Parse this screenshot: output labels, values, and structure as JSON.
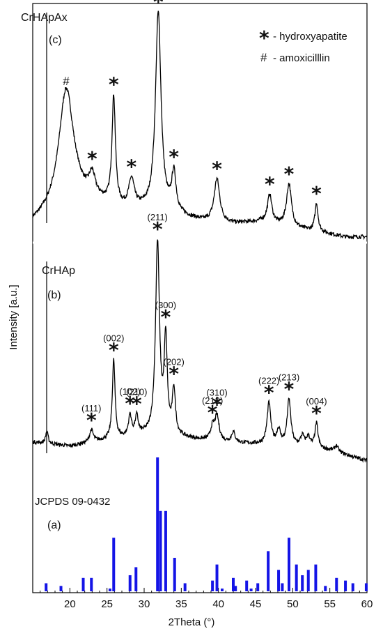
{
  "chart_data": {
    "type": "xrd-pattern",
    "xlabel": "2Theta (°)",
    "ylabel": "Intensity [a.u.]",
    "xlim": [
      15,
      60
    ],
    "x_ticks": [
      "20",
      "25",
      "30",
      "35",
      "40",
      "45",
      "50",
      "55",
      "60"
    ],
    "legend": [
      {
        "symbol": "*",
        "label": "- hydroxyapatite"
      },
      {
        "symbol": "#",
        "label": "- amoxicilllin"
      }
    ],
    "panels": [
      {
        "id": "c",
        "name": "CrHApAx",
        "tag": "(c)",
        "baseline": [
          [
            15,
            0.06
          ],
          [
            18,
            0.11
          ],
          [
            21,
            0.16
          ],
          [
            24,
            0.15
          ],
          [
            27,
            0.12
          ],
          [
            30,
            0.12
          ],
          [
            34,
            0.1
          ],
          [
            38,
            0.07
          ],
          [
            42,
            0.06
          ],
          [
            46,
            0.07
          ],
          [
            50,
            0.04
          ],
          [
            54,
            0.02
          ],
          [
            57,
            0.0
          ],
          [
            60,
            0.0
          ]
        ],
        "peaks": [
          {
            "x": 19.5,
            "height": 0.55,
            "width": 1.2,
            "marker": "#"
          },
          {
            "x": 23.0,
            "height": 0.1,
            "width": 0.5,
            "marker": "*"
          },
          {
            "x": 25.9,
            "height": 0.5,
            "width": 0.28,
            "marker": "*"
          },
          {
            "x": 28.3,
            "height": 0.13,
            "width": 0.45,
            "marker": "*"
          },
          {
            "x": 31.9,
            "height": 0.92,
            "width": 0.45,
            "marker": "*"
          },
          {
            "x": 34.0,
            "height": 0.18,
            "width": 0.35,
            "marker": "*"
          },
          {
            "x": 39.8,
            "height": 0.2,
            "width": 0.45,
            "marker": "*"
          },
          {
            "x": 46.9,
            "height": 0.13,
            "width": 0.35,
            "marker": "*"
          },
          {
            "x": 49.5,
            "height": 0.2,
            "width": 0.4,
            "marker": "*"
          },
          {
            "x": 53.2,
            "height": 0.13,
            "width": 0.25,
            "marker": "*"
          }
        ]
      },
      {
        "id": "b",
        "name": "CrHAp",
        "tag": "(b)",
        "baseline": [
          [
            15,
            0.02
          ],
          [
            20,
            0.0
          ],
          [
            25,
            0.03
          ],
          [
            30,
            0.05
          ],
          [
            35,
            0.04
          ],
          [
            40,
            0.02
          ],
          [
            45,
            0.01
          ],
          [
            50,
            0.0
          ],
          [
            55,
            -0.02
          ],
          [
            60,
            -0.07
          ]
        ],
        "peaks": [
          {
            "x": 16.9,
            "height": 0.06,
            "width": 0.2
          },
          {
            "x": 22.9,
            "height": 0.06,
            "width": 0.3,
            "hkl": "(111)",
            "marker": "*"
          },
          {
            "x": 25.9,
            "height": 0.38,
            "width": 0.22,
            "hkl": "(002)",
            "marker": "*"
          },
          {
            "x": 28.1,
            "height": 0.1,
            "width": 0.25,
            "hkl": "(102)",
            "marker": "*"
          },
          {
            "x": 29.0,
            "height": 0.09,
            "width": 0.25,
            "hkl": "(210)",
            "marker": "*"
          },
          {
            "x": 31.8,
            "height": 0.93,
            "width": 0.32,
            "hkl": "(211)",
            "marker": "*"
          },
          {
            "x": 32.9,
            "height": 0.45,
            "width": 0.25,
            "hkl": "(300)",
            "marker": "*"
          },
          {
            "x": 34.0,
            "height": 0.22,
            "width": 0.25,
            "hkl": "(202)",
            "marker": "*"
          },
          {
            "x": 39.2,
            "height": 0.06,
            "width": 0.3,
            "hkl": "(212)",
            "marker": "*"
          },
          {
            "x": 39.8,
            "height": 0.12,
            "width": 0.35,
            "hkl": "(310)",
            "marker": "*"
          },
          {
            "x": 42.0,
            "height": 0.05,
            "width": 0.3
          },
          {
            "x": 46.8,
            "height": 0.2,
            "width": 0.3,
            "hkl": "(222)",
            "marker": "*"
          },
          {
            "x": 48.1,
            "height": 0.07,
            "width": 0.3
          },
          {
            "x": 49.5,
            "height": 0.22,
            "width": 0.3,
            "hkl": "(213)",
            "marker": "*"
          },
          {
            "x": 51.3,
            "height": 0.05,
            "width": 0.3
          },
          {
            "x": 52.1,
            "height": 0.05,
            "width": 0.3
          },
          {
            "x": 53.2,
            "height": 0.12,
            "width": 0.25,
            "hkl": "(004)",
            "marker": "*"
          },
          {
            "x": 55.9,
            "height": 0.03,
            "width": 0.3
          }
        ]
      }
    ],
    "reference": {
      "name": "JCPDS 09-0432",
      "tag": "(a)",
      "color": "#1414e6",
      "bars": [
        {
          "x": 16.8,
          "value": 6
        },
        {
          "x": 18.8,
          "value": 4
        },
        {
          "x": 21.8,
          "value": 10
        },
        {
          "x": 22.9,
          "value": 10
        },
        {
          "x": 25.4,
          "value": 2
        },
        {
          "x": 25.9,
          "value": 40
        },
        {
          "x": 28.1,
          "value": 12
        },
        {
          "x": 28.9,
          "value": 18
        },
        {
          "x": 31.8,
          "value": 100
        },
        {
          "x": 32.2,
          "value": 60
        },
        {
          "x": 32.9,
          "value": 60
        },
        {
          "x": 34.1,
          "value": 25
        },
        {
          "x": 35.5,
          "value": 6
        },
        {
          "x": 39.2,
          "value": 8
        },
        {
          "x": 39.8,
          "value": 20
        },
        {
          "x": 40.5,
          "value": 2
        },
        {
          "x": 42.0,
          "value": 10
        },
        {
          "x": 42.3,
          "value": 4
        },
        {
          "x": 43.8,
          "value": 8
        },
        {
          "x": 44.4,
          "value": 2
        },
        {
          "x": 45.3,
          "value": 6
        },
        {
          "x": 46.7,
          "value": 30
        },
        {
          "x": 48.1,
          "value": 16
        },
        {
          "x": 48.6,
          "value": 6
        },
        {
          "x": 49.5,
          "value": 40
        },
        {
          "x": 50.5,
          "value": 20
        },
        {
          "x": 51.3,
          "value": 12
        },
        {
          "x": 52.1,
          "value": 16
        },
        {
          "x": 53.1,
          "value": 20
        },
        {
          "x": 54.4,
          "value": 4
        },
        {
          "x": 55.9,
          "value": 10
        },
        {
          "x": 57.1,
          "value": 8
        },
        {
          "x": 58.1,
          "value": 6
        },
        {
          "x": 59.9,
          "value": 6
        }
      ]
    }
  }
}
